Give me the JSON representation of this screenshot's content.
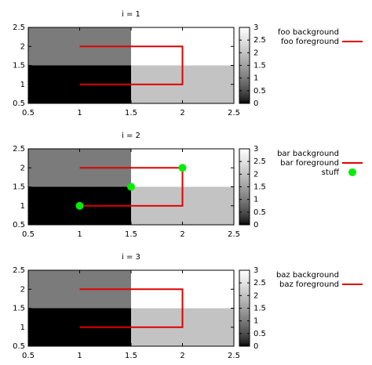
{
  "chart_data": [
    {
      "type": "heatmap",
      "title": "i = 1",
      "xlim": [
        0.5,
        2.5
      ],
      "xticks": [
        0.5,
        1,
        1.5,
        2,
        2.5
      ],
      "ylim": [
        0.5,
        2.5
      ],
      "yticks": [
        0.5,
        1,
        1.5,
        2,
        2.5
      ],
      "heatmap": {
        "name": "foo background",
        "x": [
          1,
          2
        ],
        "y": [
          1,
          2
        ],
        "z": [
          [
            0,
            2
          ],
          [
            1,
            3
          ]
        ],
        "zlim": [
          0,
          3
        ],
        "zticks": [
          0,
          0.5,
          1,
          1.5,
          2,
          2.5,
          3
        ],
        "palette_gamma": 1.5
      },
      "series": [
        {
          "name": "foo foreground",
          "type": "line",
          "color": "#e00000",
          "x": [
            1,
            2,
            2,
            1
          ],
          "y": [
            2,
            2,
            1,
            1
          ]
        }
      ]
    },
    {
      "type": "heatmap",
      "title": "i = 2",
      "xlim": [
        0.5,
        2.5
      ],
      "xticks": [
        0.5,
        1,
        1.5,
        2,
        2.5
      ],
      "ylim": [
        0.5,
        2.5
      ],
      "yticks": [
        0.5,
        1,
        1.5,
        2,
        2.5
      ],
      "heatmap": {
        "name": "bar background",
        "x": [
          1,
          2
        ],
        "y": [
          1,
          2
        ],
        "z": [
          [
            0,
            2
          ],
          [
            1,
            3
          ]
        ],
        "zlim": [
          0,
          3
        ],
        "zticks": [
          0,
          0.5,
          1,
          1.5,
          2,
          2.5,
          3
        ],
        "palette_gamma": 1.5
      },
      "series": [
        {
          "name": "bar foreground",
          "type": "line",
          "color": "#e00000",
          "x": [
            1,
            2,
            2,
            1
          ],
          "y": [
            2,
            2,
            1,
            1
          ]
        },
        {
          "name": "stuff",
          "type": "scatter",
          "color": "#00ee00",
          "x": [
            1,
            1.5,
            2
          ],
          "y": [
            1,
            1.5,
            2
          ]
        }
      ]
    },
    {
      "type": "heatmap",
      "title": "i = 3",
      "xlim": [
        0.5,
        2.5
      ],
      "xticks": [
        0.5,
        1,
        1.5,
        2,
        2.5
      ],
      "ylim": [
        0.5,
        2.5
      ],
      "yticks": [
        0.5,
        1,
        1.5,
        2,
        2.5
      ],
      "heatmap": {
        "name": "baz background",
        "x": [
          1,
          2
        ],
        "y": [
          1,
          2
        ],
        "z": [
          [
            0,
            2
          ],
          [
            1,
            3
          ]
        ],
        "zlim": [
          0,
          3
        ],
        "zticks": [
          0,
          0.5,
          1,
          1.5,
          2,
          2.5,
          3
        ],
        "palette_gamma": 1.5
      },
      "series": [
        {
          "name": "baz foreground",
          "type": "line",
          "color": "#e00000",
          "x": [
            1,
            2,
            2,
            1
          ],
          "y": [
            2,
            2,
            1,
            1
          ]
        }
      ]
    }
  ]
}
